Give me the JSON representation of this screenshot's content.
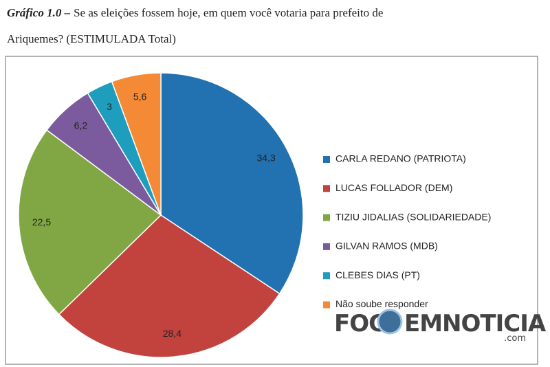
{
  "chart_data": {
    "type": "pie",
    "title_prefix": "Gráfico 1.0 –",
    "title_line1": "Se as eleições fossem hoje, em quem você votaria para prefeito de",
    "title_line2": "Ariquemes? (ESTIMULADA Total)",
    "categories": [
      "CARLA REDANO (PATRIOTA)",
      "LUCAS FOLLADOR (DEM)",
      "TIZIU JIDALIAS (SOLIDARIEDADE)",
      "GILVAN RAMOS (MDB)",
      "CLEBES DIAS (PT)",
      "Não soube responder"
    ],
    "values": [
      34.3,
      28.4,
      22.5,
      6.2,
      3,
      5.6
    ],
    "value_labels": [
      "34,3",
      "28,4",
      "22,5",
      "6,2",
      "3",
      "5,6"
    ],
    "colors": [
      "#2271b1",
      "#c2423e",
      "#80a744",
      "#7b5a9e",
      "#1e9dbd",
      "#f48a36"
    ],
    "legend": "right",
    "watermark_left": "FOC",
    "watermark_right": "EMNOTICIA",
    "watermark_suffix": ".com"
  }
}
